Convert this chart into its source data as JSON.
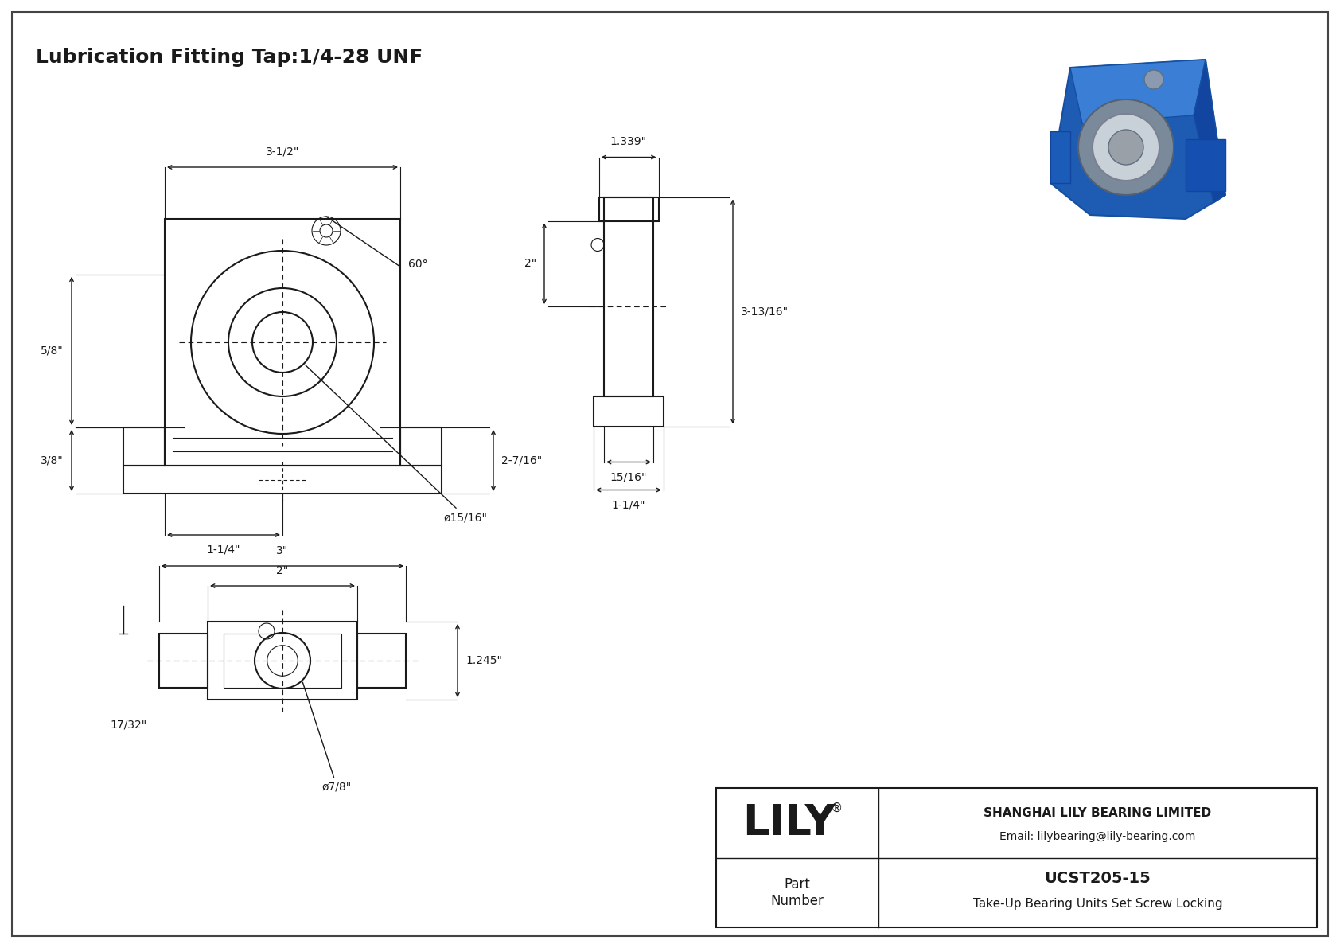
{
  "title": "Lubrication Fitting Tap:1/4-28 UNF",
  "bg_color": "#ffffff",
  "line_color": "#1a1a1a",
  "title_fontsize": 18,
  "dim_fontsize": 10,
  "company_name": "SHANGHAI LILY BEARING LIMITED",
  "company_email": "Email: lilybearing@lily-bearing.com",
  "part_label": "Part\nNumber",
  "part_number": "UCST205-15",
  "part_desc": "Take-Up Bearing Units Set Screw Locking",
  "lily_text": "LILY",
  "dimensions": {
    "front_width": "3-1/2\"",
    "front_height_upper": "5/8\"",
    "front_height_lower": "3/8\"",
    "front_bore_dia": "ø15/16\"",
    "front_depth": "2-7/16\"",
    "front_bolt": "1-1/4\"",
    "angle": "60°",
    "side_top": "1.339\"",
    "side_height": "2\"",
    "side_full_height": "3-13/16\"",
    "side_base_w1": "15/16\"",
    "side_base_w2": "1-1/4\"",
    "bottom_outer": "3\"",
    "bottom_inner": "2\"",
    "bottom_height": "1.245\"",
    "bottom_side": "17/32\"",
    "bottom_bore": "ø7/8\""
  }
}
